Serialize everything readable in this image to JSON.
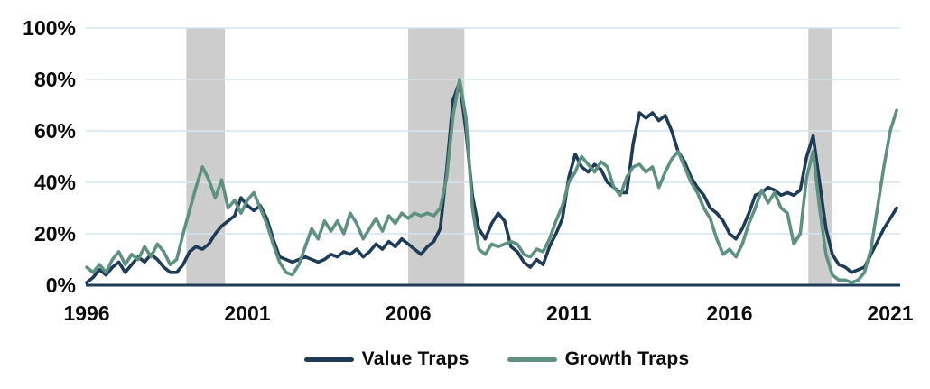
{
  "chart_data": {
    "type": "line",
    "title": "",
    "xlabel": "",
    "ylabel": "",
    "grid": "horizontal",
    "legend_position": "bottom-center",
    "colors": {
      "value_traps": "#1e3c58",
      "growth_traps": "#5f9180",
      "highlight_band": "#cdcdcd",
      "gridline": "#d6e4ee",
      "axis_line": "#1e3c58",
      "text": "#0b0b0b"
    },
    "x_axis": {
      "min": 1996,
      "max": 2021.3,
      "ticks": [
        {
          "value": 1996,
          "label": "1996"
        },
        {
          "value": 2001,
          "label": "2001"
        },
        {
          "value": 2006,
          "label": "2006"
        },
        {
          "value": 2011,
          "label": "2011"
        },
        {
          "value": 2016,
          "label": "2016"
        },
        {
          "value": 2021,
          "label": "2021"
        }
      ]
    },
    "y_axis": {
      "min": 0,
      "max": 100,
      "unit": "%",
      "ticks": [
        {
          "value": 0,
          "label": "0%"
        },
        {
          "value": 20,
          "label": "20%"
        },
        {
          "value": 40,
          "label": "40%"
        },
        {
          "value": 60,
          "label": "60%"
        },
        {
          "value": 80,
          "label": "80%"
        },
        {
          "value": 100,
          "label": "100%"
        }
      ]
    },
    "shaded_bands": [
      {
        "from": 1999.1,
        "to": 2000.3
      },
      {
        "from": 2006.0,
        "to": 2007.75
      },
      {
        "from": 2018.45,
        "to": 2019.2
      }
    ],
    "x_start": 1996.0,
    "x_step": 0.2,
    "series": [
      {
        "name": "Value Traps",
        "color": "#1e3c58",
        "values": [
          1,
          3,
          6,
          4,
          7,
          9,
          5,
          8,
          11,
          9,
          12,
          10,
          7,
          5,
          5,
          8,
          13,
          15,
          14,
          16,
          20,
          23,
          25,
          27,
          34,
          31,
          29,
          31,
          26,
          18,
          11,
          10,
          9,
          10,
          11,
          10,
          9,
          10,
          12,
          11,
          13,
          12,
          14,
          11,
          13,
          16,
          14,
          17,
          15,
          18,
          16,
          14,
          12,
          15,
          17,
          22,
          45,
          72,
          79,
          60,
          35,
          22,
          18,
          24,
          28,
          25,
          15,
          13,
          9,
          7,
          10,
          8,
          15,
          20,
          26,
          42,
          51,
          46,
          44,
          47,
          45,
          40,
          38,
          36,
          36,
          55,
          67,
          65,
          67,
          64,
          66,
          60,
          52,
          48,
          42,
          38,
          35,
          30,
          28,
          25,
          20,
          18,
          22,
          28,
          35,
          36,
          38,
          37,
          35,
          36,
          35,
          37,
          50,
          58,
          40,
          22,
          12,
          8,
          7,
          5,
          6,
          7,
          12,
          17,
          22,
          26,
          30
        ]
      },
      {
        "name": "Growth Traps",
        "color": "#5f9180",
        "values": [
          7,
          5,
          8,
          5,
          10,
          13,
          8,
          12,
          10,
          15,
          11,
          16,
          13,
          8,
          10,
          20,
          29,
          38,
          46,
          41,
          34,
          41,
          30,
          33,
          28,
          33,
          36,
          30,
          24,
          16,
          9,
          5,
          4,
          8,
          15,
          22,
          18,
          25,
          21,
          25,
          20,
          28,
          24,
          18,
          22,
          26,
          21,
          27,
          24,
          28,
          26,
          28,
          27,
          28,
          27,
          30,
          42,
          66,
          80,
          65,
          30,
          14,
          12,
          16,
          15,
          16,
          17,
          16,
          12,
          11,
          14,
          13,
          18,
          25,
          31,
          40,
          44,
          50,
          47,
          44,
          48,
          46,
          38,
          35,
          42,
          46,
          47,
          44,
          46,
          38,
          44,
          49,
          52,
          46,
          40,
          36,
          30,
          26,
          18,
          12,
          14,
          11,
          16,
          24,
          30,
          37,
          32,
          36,
          30,
          28,
          16,
          20,
          42,
          52,
          30,
          12,
          4,
          2,
          2,
          1,
          2,
          5,
          14,
          30,
          46,
          60,
          68
        ]
      }
    ]
  },
  "legend": {
    "items": [
      {
        "label": "Value Traps"
      },
      {
        "label": "Growth Traps"
      }
    ]
  }
}
